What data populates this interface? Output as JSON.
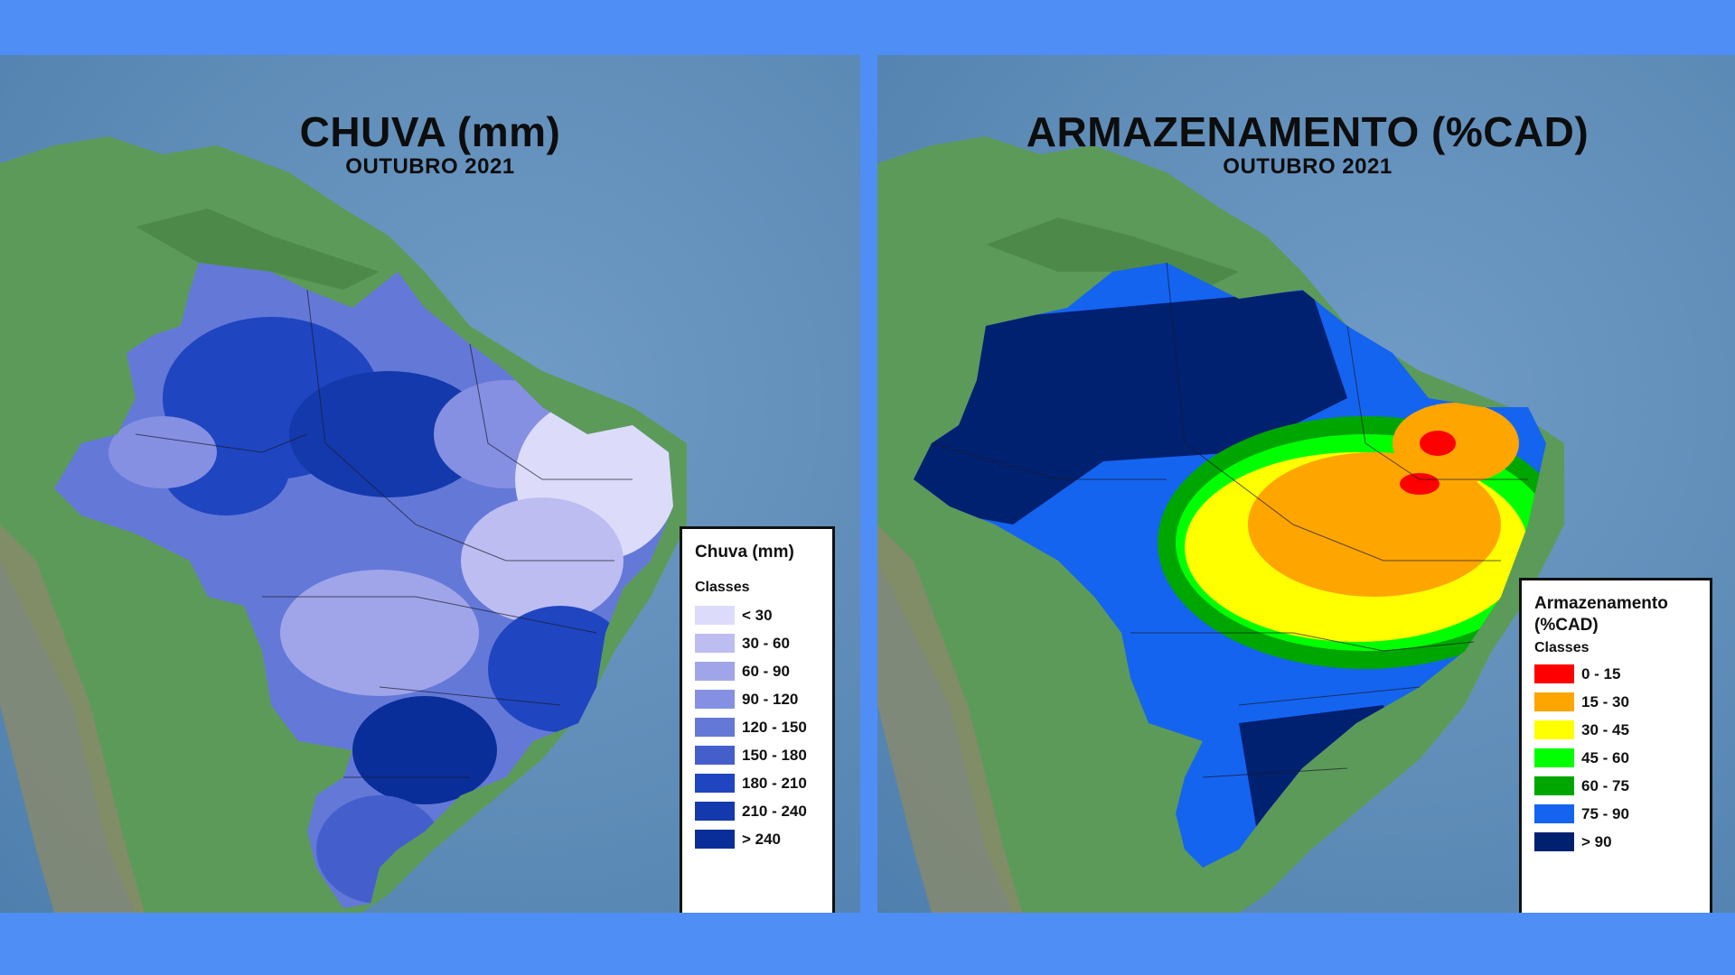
{
  "left_map": {
    "title": "CHUVA (mm)",
    "subtitle": "OUTUBRO 2021",
    "legend": {
      "title": "Chuva (mm)",
      "subtitle": "Classes",
      "items": [
        {
          "label": "< 30",
          "color": "#dcdcfa"
        },
        {
          "label": "30 - 60",
          "color": "#bdbdf2"
        },
        {
          "label": "60 - 90",
          "color": "#a0a5ea"
        },
        {
          "label": "90 - 120",
          "color": "#8590e2"
        },
        {
          "label": "120 - 150",
          "color": "#6478d8"
        },
        {
          "label": "150 - 180",
          "color": "#445fcc"
        },
        {
          "label": "180 - 210",
          "color": "#1f45c0"
        },
        {
          "label": "210 - 240",
          "color": "#1339ac"
        },
        {
          "label": "> 240",
          "color": "#0a2e99"
        }
      ]
    }
  },
  "right_map": {
    "title": "ARMAZENAMENTO (%CAD)",
    "subtitle": "OUTUBRO 2021",
    "legend": {
      "title_line1": "Armazenamento",
      "title_line2": "(%CAD)",
      "subtitle": "Classes",
      "items": [
        {
          "label": "0 - 15",
          "color": "#ff0000"
        },
        {
          "label": "15 - 30",
          "color": "#ffa500"
        },
        {
          "label": "30 - 45",
          "color": "#ffff00"
        },
        {
          "label": "45 - 60",
          "color": "#00ff00"
        },
        {
          "label": "60 - 75",
          "color": "#00a600"
        },
        {
          "label": "75 - 90",
          "color": "#1464f0"
        },
        {
          "label": "> 90",
          "color": "#002070"
        }
      ]
    }
  }
}
